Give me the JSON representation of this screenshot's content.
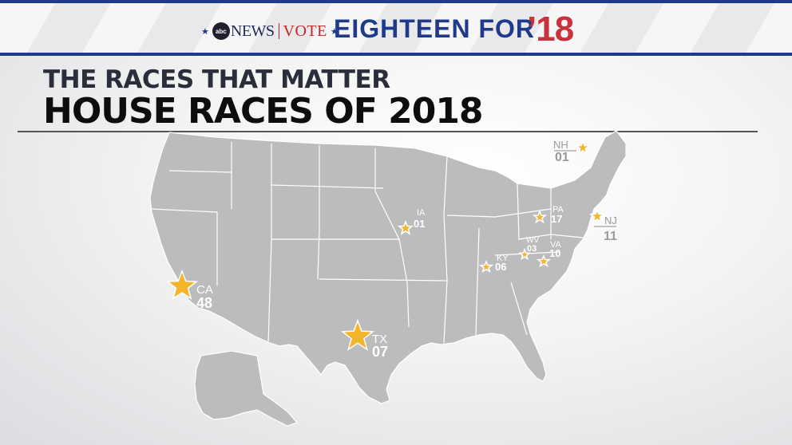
{
  "banner": {
    "network": "abc",
    "news": "NEWS",
    "vote": "VOTE",
    "title": "EIGHTEEN FOR",
    "year": "’18"
  },
  "headline": {
    "subtitle": "THE RACES THAT MATTER",
    "title": "HOUSE RACES OF 2018"
  },
  "colors": {
    "banner_blue": "#1f3a8a",
    "year_red": "#c8323c",
    "map_gray": "#bcbcbe",
    "star_gold": "#f3b62b"
  },
  "races": [
    {
      "state": "CA",
      "district": "48"
    },
    {
      "state": "TX",
      "district": "07"
    },
    {
      "state": "IA",
      "district": "01"
    },
    {
      "state": "KY",
      "district": "06"
    },
    {
      "state": "WV",
      "district": "03"
    },
    {
      "state": "VA",
      "district": "10"
    },
    {
      "state": "PA",
      "district": "17"
    },
    {
      "state": "NJ",
      "district": "11"
    },
    {
      "state": "NH",
      "district": "01"
    }
  ]
}
